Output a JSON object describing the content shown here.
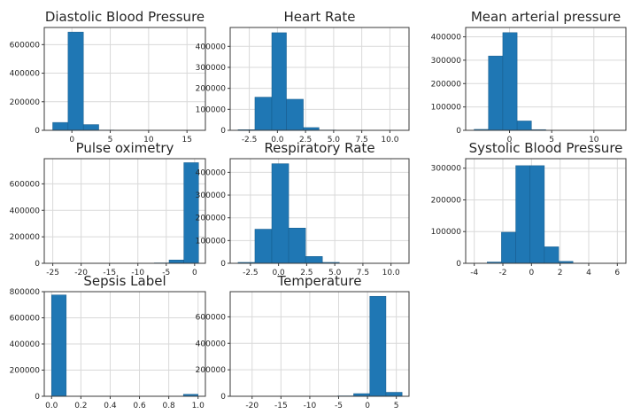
{
  "chart_data": [
    {
      "type": "bar",
      "title": "Diastolic Blood Pressure",
      "xlim": [
        -3.6,
        17.4
      ],
      "ylim": [
        0,
        720000
      ],
      "xticks": [
        0,
        5,
        10,
        15
      ],
      "xtick_labels": [
        "0",
        "5",
        "10",
        "15"
      ],
      "yticks": [
        0,
        200000,
        400000,
        600000
      ],
      "ytick_labels": [
        "0",
        "200000",
        "400000",
        "600000"
      ],
      "grid": true,
      "bin_edges": [
        -2.5,
        -0.5,
        1.5,
        3.5,
        5.5,
        7.5,
        9.5,
        11.5,
        13.5,
        15.5
      ],
      "counts": [
        55000,
        688000,
        40000,
        2000,
        500,
        200,
        100,
        50,
        30
      ]
    },
    {
      "type": "bar",
      "title": "Heart Rate",
      "xlim": [
        -4.2,
        11.7
      ],
      "ylim": [
        0,
        490000
      ],
      "xticks": [
        -2.5,
        0,
        2.5,
        5,
        7.5,
        10
      ],
      "xtick_labels": [
        "-2.5",
        "0.0",
        "2.5",
        "5.0",
        "7.5",
        "10.0"
      ],
      "yticks": [
        0,
        100000,
        200000,
        300000,
        400000
      ],
      "ytick_labels": [
        "0",
        "100000",
        "200000",
        "300000",
        "400000"
      ],
      "grid": true,
      "bin_edges": [
        -3.5,
        -2.0,
        -0.5,
        0.8,
        2.3,
        3.7,
        5.2,
        6.6,
        8.1,
        9.5,
        11.0
      ],
      "counts": [
        3000,
        158000,
        465000,
        148000,
        13000,
        1500,
        300,
        100,
        50,
        20
      ]
    },
    {
      "type": "bar",
      "title": "Mean arterial pressure",
      "xlim": [
        -5.2,
        13.8
      ],
      "ylim": [
        0,
        440000
      ],
      "xticks": [
        0,
        5,
        10
      ],
      "xtick_labels": [
        "0",
        "5",
        "10"
      ],
      "yticks": [
        0,
        100000,
        200000,
        300000,
        400000
      ],
      "ytick_labels": [
        "0",
        "100000",
        "200000",
        "300000",
        "400000"
      ],
      "grid": true,
      "bin_edges": [
        -4.2,
        -2.5,
        -0.8,
        0.9,
        2.6,
        4.3,
        6.0,
        7.7,
        9.4,
        11.1,
        12.8
      ],
      "counts": [
        4000,
        318000,
        418000,
        40000,
        3000,
        500,
        100,
        50,
        20,
        10
      ]
    },
    {
      "type": "bar",
      "title": "Pulse oximetry",
      "xlim": [
        -26.5,
        1.9
      ],
      "ylim": [
        0,
        790000
      ],
      "xticks": [
        -25,
        -20,
        -15,
        -10,
        -5,
        0
      ],
      "xtick_labels": [
        "-25",
        "-20",
        "-15",
        "-10",
        "-5",
        "0"
      ],
      "yticks": [
        0,
        200000,
        400000,
        600000
      ],
      "ytick_labels": [
        "0",
        "200000",
        "400000",
        "600000"
      ],
      "grid": true,
      "bin_edges": [
        -25.3,
        -22.7,
        -20.1,
        -17.5,
        -14.9,
        -12.3,
        -9.7,
        -7.1,
        -4.5,
        -1.9,
        0.7
      ],
      "counts": [
        100,
        100,
        100,
        150,
        200,
        300,
        800,
        3000,
        25000,
        760000
      ]
    },
    {
      "type": "bar",
      "title": "Respiratory Rate",
      "xlim": [
        -4.3,
        11.6
      ],
      "ylim": [
        0,
        460000
      ],
      "xticks": [
        -2.5,
        0,
        2.5,
        5,
        7.5,
        10
      ],
      "xtick_labels": [
        "-2.5",
        "0.0",
        "2.5",
        "5.0",
        "7.5",
        "10.0"
      ],
      "yticks": [
        0,
        100000,
        200000,
        300000,
        400000
      ],
      "ytick_labels": [
        "0",
        "100000",
        "200000",
        "300000",
        "400000"
      ],
      "grid": true,
      "bin_edges": [
        -3.6,
        -2.1,
        -0.6,
        0.9,
        2.4,
        3.9,
        5.4,
        6.9,
        8.4,
        9.9,
        11.4
      ],
      "counts": [
        4000,
        150000,
        438000,
        155000,
        30000,
        4000,
        800,
        200,
        100,
        50
      ]
    },
    {
      "type": "bar",
      "title": "Systolic Blood Pressure",
      "xlim": [
        -4.6,
        6.6
      ],
      "ylim": [
        0,
        330000
      ],
      "xticks": [
        -4,
        -2,
        0,
        2,
        4,
        6
      ],
      "xtick_labels": [
        "-4",
        "-2",
        "0",
        "2",
        "4",
        "6"
      ],
      "yticks": [
        0,
        100000,
        200000,
        300000
      ],
      "ytick_labels": [
        "0",
        "100000",
        "200000",
        "300000"
      ],
      "grid": true,
      "bin_edges": [
        -4.1,
        -3.1,
        -2.1,
        -1.1,
        -0.1,
        0.9,
        1.9,
        2.9,
        3.9,
        4.9,
        5.9
      ],
      "counts": [
        500,
        4000,
        98000,
        308000,
        308000,
        52000,
        6000,
        800,
        150,
        30
      ]
    },
    {
      "type": "bar",
      "title": "Sepsis Label",
      "xlim": [
        -0.05,
        1.05
      ],
      "ylim": [
        0,
        800000
      ],
      "xticks": [
        0,
        0.2,
        0.4,
        0.6,
        0.8,
        1.0
      ],
      "xtick_labels": [
        "0.0",
        "0.2",
        "0.4",
        "0.6",
        "0.8",
        "1.0"
      ],
      "yticks": [
        0,
        200000,
        400000,
        600000,
        800000
      ],
      "ytick_labels": [
        "0",
        "200000",
        "400000",
        "600000",
        "800000"
      ],
      "grid": true,
      "bin_edges": [
        0,
        0.1,
        0.2,
        0.3,
        0.4,
        0.5,
        0.6,
        0.7,
        0.8,
        0.9,
        1.0
      ],
      "counts": [
        775000,
        0,
        0,
        0,
        0,
        0,
        0,
        0,
        0,
        15000
      ]
    },
    {
      "type": "bar",
      "title": "Temperature",
      "xlim": [
        -23.8,
        7.2
      ],
      "ylim": [
        0,
        790000
      ],
      "xticks": [
        -20,
        -15,
        -10,
        -5,
        0,
        5
      ],
      "xtick_labels": [
        "-20",
        "-15",
        "-10",
        "-5",
        "0",
        "5"
      ],
      "yticks": [
        0,
        200000,
        400000,
        600000
      ],
      "ytick_labels": [
        "0",
        "200000",
        "400000",
        "600000"
      ],
      "grid": true,
      "bin_edges": [
        -22.0,
        -19.2,
        -16.4,
        -13.6,
        -10.8,
        -8.0,
        -5.2,
        -2.4,
        0.4,
        3.2,
        6.0
      ],
      "counts": [
        100,
        100,
        100,
        150,
        200,
        400,
        3000,
        20000,
        755000,
        30000
      ]
    }
  ]
}
